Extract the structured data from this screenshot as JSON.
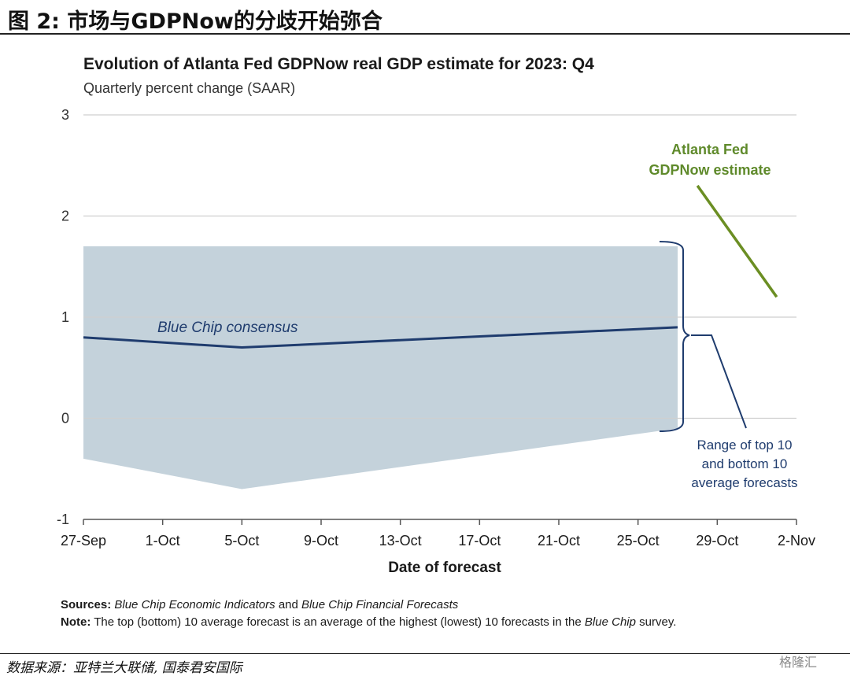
{
  "figure": {
    "title": "图 2:  市场与GDPNow的分歧开始弥合",
    "source": "数据来源：亚特兰大联储, 国泰君安国际",
    "watermark": "格隆汇"
  },
  "chart_data": {
    "type": "line",
    "title": "Evolution of Atlanta Fed GDPNow real GDP estimate for 2023: Q4",
    "subtitle": "Quarterly percent change (SAAR)",
    "xlabel": "Date of forecast",
    "ylabel": "",
    "ylim": [
      -1,
      3
    ],
    "yticks": [
      "3",
      "2",
      "1",
      "0",
      "-1"
    ],
    "xticks": [
      "27-Sep",
      "1-Oct",
      "5-Oct",
      "9-Oct",
      "13-Oct",
      "17-Oct",
      "21-Oct",
      "25-Oct",
      "29-Oct",
      "2-Nov"
    ],
    "grid": true,
    "series": [
      {
        "name": "Blue Chip consensus",
        "color": "#1f3c6e",
        "points": [
          [
            "27-Sep",
            0.8
          ],
          [
            "5-Oct",
            0.7
          ],
          [
            "27-Oct",
            0.9
          ]
        ]
      },
      {
        "name": "Atlanta Fed GDPNow estimate",
        "color": "#6b8e23",
        "points": [
          [
            "28-Oct",
            2.3
          ],
          [
            "1-Nov",
            1.2
          ]
        ]
      }
    ],
    "range_band": {
      "name": "Range of top 10 and bottom 10 average forecasts",
      "color": "#c4d2db",
      "upper": [
        [
          "27-Sep",
          1.7
        ],
        [
          "27-Oct",
          1.7
        ]
      ],
      "lower": [
        [
          "27-Sep",
          -0.4
        ],
        [
          "5-Oct",
          -0.7
        ],
        [
          "27-Oct",
          -0.1
        ]
      ]
    },
    "annotations": {
      "blue_chip": "Blue Chip consensus",
      "gdpnow_line1": "Atlanta Fed",
      "gdpnow_line2": "GDPNow estimate",
      "range_line1": "Range of top 10",
      "range_line2": "and bottom 10",
      "range_line3": "average forecasts"
    }
  },
  "notes": {
    "sources_label": "Sources:",
    "sources_text_1": "Blue Chip Economic Indicators",
    "sources_and": "and",
    "sources_text_2": "Blue Chip Financial Forecasts",
    "note_label": "Note:",
    "note_text": "The top (bottom) 10 average forecast is an average of the highest (lowest) 10 forecasts in the",
    "note_italic": "Blue Chip",
    "note_end": "survey."
  }
}
